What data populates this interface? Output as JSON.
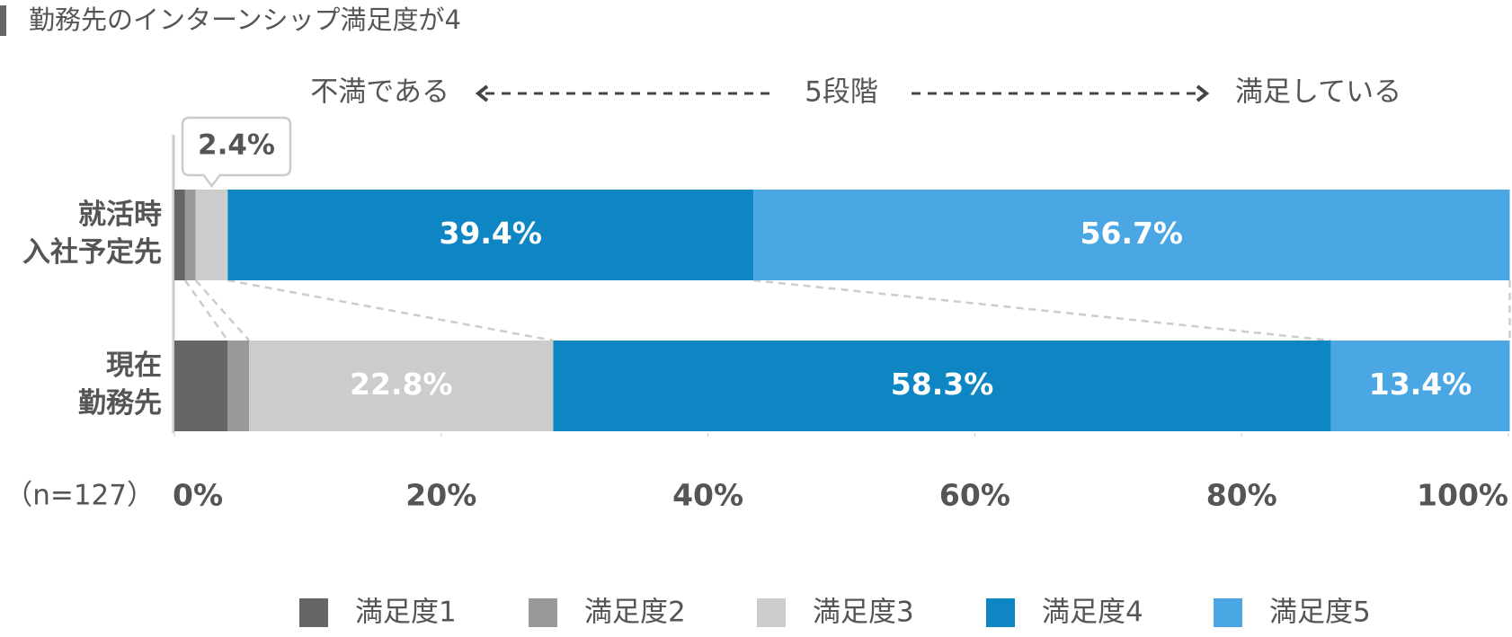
{
  "chart_data": {
    "type": "bar",
    "orientation": "horizontal",
    "stacked": true,
    "title": "勤務先のインターンシップ満足度が4",
    "annotations": {
      "left": "不満である",
      "center": "5段階",
      "right": "満足している",
      "sample": "（n=127）"
    },
    "categories": [
      [
        "就活時",
        "入社予定先"
      ],
      [
        "現在",
        "勤務先"
      ]
    ],
    "series": [
      {
        "name": "満足度1",
        "color": "#666666",
        "values": [
          0.8,
          4.0
        ],
        "value_labels": [
          null,
          null
        ]
      },
      {
        "name": "満足度2",
        "color": "#999999",
        "values": [
          0.8,
          1.6
        ],
        "value_labels": [
          null,
          null
        ]
      },
      {
        "name": "満足度3",
        "color": "#cccccc",
        "values": [
          2.4,
          22.8
        ],
        "value_labels": [
          "2.4%",
          "22.8%"
        ]
      },
      {
        "name": "満足度4",
        "color": "#0e86c4",
        "values": [
          39.4,
          58.3
        ],
        "value_labels": [
          "39.4%",
          "58.3%"
        ]
      },
      {
        "name": "満足度5",
        "color": "#4aa7e3",
        "values": [
          56.7,
          13.4
        ],
        "value_labels": [
          "56.7%",
          "13.4%"
        ]
      }
    ],
    "xlim": [
      0,
      100
    ],
    "xticks": [
      {
        "value": 0,
        "label": "0%"
      },
      {
        "value": 20,
        "label": "20%"
      },
      {
        "value": 40,
        "label": "40%"
      },
      {
        "value": 60,
        "label": "60%"
      },
      {
        "value": 80,
        "label": "80%"
      },
      {
        "value": 100,
        "label": "100%"
      }
    ],
    "legend": "bottom"
  }
}
